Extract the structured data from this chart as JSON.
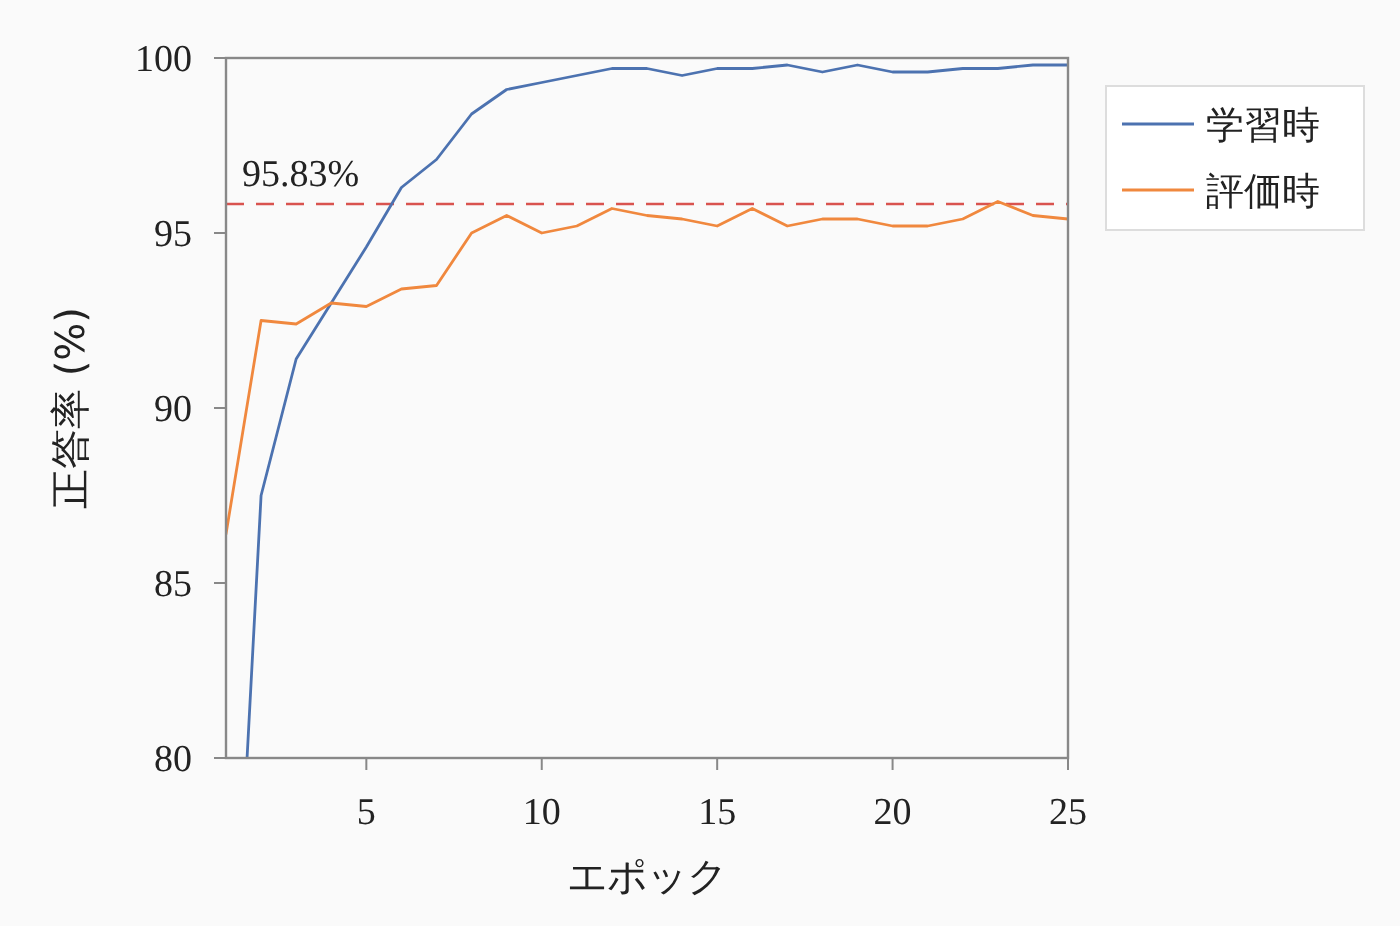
{
  "chart_data": {
    "type": "line",
    "xlabel": "エポック",
    "ylabel": "正答率 (%)",
    "x": [
      1,
      2,
      3,
      4,
      5,
      6,
      7,
      8,
      9,
      10,
      11,
      12,
      13,
      14,
      15,
      16,
      17,
      18,
      19,
      20,
      21,
      22,
      23,
      24,
      25
    ],
    "series": [
      {
        "name": "学習時",
        "color": "#4c72b0",
        "x": [
          1.6,
          2,
          3,
          4,
          5,
          6,
          7,
          8,
          9,
          10,
          11,
          12,
          13,
          14,
          15,
          16,
          17,
          18,
          19,
          20,
          21,
          22,
          23,
          24,
          25
        ],
        "values": [
          80,
          87.5,
          91.4,
          93.0,
          94.6,
          96.3,
          97.1,
          98.4,
          99.1,
          99.3,
          99.5,
          99.7,
          99.7,
          99.5,
          99.7,
          99.7,
          99.8,
          99.6,
          99.8,
          99.6,
          99.6,
          99.7,
          99.7,
          99.8,
          99.8
        ]
      },
      {
        "name": "評価時",
        "color": "#f0883e",
        "values": [
          86.4,
          92.5,
          92.4,
          93.0,
          92.9,
          93.4,
          93.5,
          95.0,
          95.5,
          95.0,
          95.2,
          95.7,
          95.5,
          95.4,
          95.2,
          95.7,
          95.2,
          95.4,
          95.4,
          95.2,
          95.2,
          95.4,
          95.9,
          95.5,
          95.4
        ]
      }
    ],
    "xlim": [
      1,
      25
    ],
    "ylim": [
      80,
      100
    ],
    "xticks": [
      5,
      10,
      15,
      20,
      25
    ],
    "yticks": [
      80,
      85,
      90,
      95,
      100
    ],
    "ref_lines": [
      {
        "axis": "y",
        "value": 95.83,
        "label": "95.83%",
        "color": "#d9534f",
        "line_style": "dashed"
      }
    ],
    "legend": "top right"
  }
}
